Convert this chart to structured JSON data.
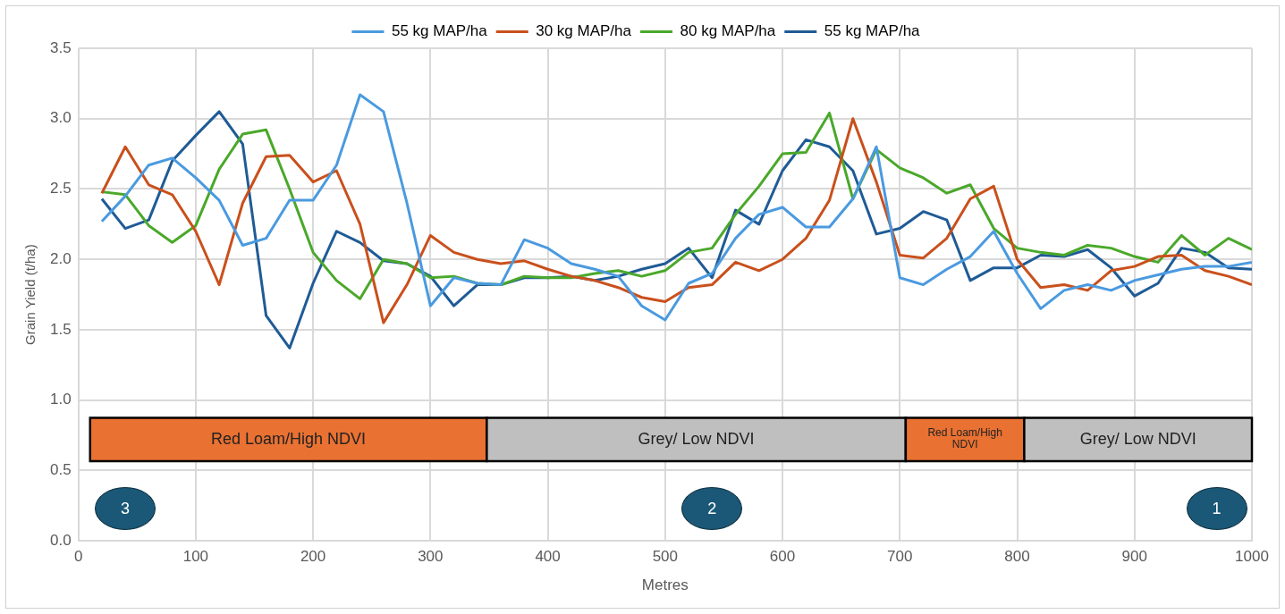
{
  "chart_data": {
    "type": "line",
    "xlabel": "Metres",
    "ylabel": "Grain Yield (t/ha)",
    "x": [
      20,
      40,
      60,
      80,
      100,
      120,
      140,
      160,
      180,
      200,
      220,
      240,
      260,
      280,
      300,
      320,
      340,
      360,
      380,
      400,
      420,
      440,
      460,
      480,
      500,
      520,
      540,
      560,
      580,
      600,
      620,
      640,
      660,
      680,
      700,
      720,
      740,
      760,
      780,
      800,
      820,
      840,
      860,
      880,
      900,
      920,
      940,
      960,
      980,
      1000
    ],
    "series": [
      {
        "name": "55 kg MAP/ha",
        "color": "#4a9ae0",
        "values": [
          2.27,
          2.45,
          2.67,
          2.72,
          2.58,
          2.42,
          2.1,
          2.15,
          2.42,
          2.42,
          2.67,
          3.17,
          3.05,
          2.4,
          1.67,
          1.87,
          1.83,
          1.82,
          2.14,
          2.08,
          1.97,
          1.93,
          1.88,
          1.67,
          1.57,
          1.83,
          1.9,
          2.15,
          2.32,
          2.37,
          2.23,
          2.23,
          2.43,
          2.8,
          1.87,
          1.82,
          1.93,
          2.02,
          2.2,
          1.9,
          1.65,
          1.78,
          1.82,
          1.78,
          1.85,
          1.89,
          1.93,
          1.95,
          1.95,
          1.98
        ]
      },
      {
        "name": "30 kg MAP/ha",
        "color": "#c9501c",
        "values": [
          2.47,
          2.8,
          2.53,
          2.46,
          2.2,
          1.82,
          2.4,
          2.73,
          2.74,
          2.55,
          2.63,
          2.25,
          1.55,
          1.82,
          2.17,
          2.05,
          2.0,
          1.97,
          1.99,
          1.93,
          1.88,
          1.85,
          1.8,
          1.73,
          1.7,
          1.8,
          1.82,
          1.98,
          1.92,
          2.0,
          2.15,
          2.42,
          3.0,
          2.55,
          2.03,
          2.01,
          2.15,
          2.43,
          2.52,
          2.0,
          1.8,
          1.82,
          1.78,
          1.92,
          1.95,
          2.02,
          2.03,
          1.92,
          1.88,
          1.82
        ]
      },
      {
        "name": "80 kg MAP/ha",
        "color": "#4aa82a",
        "values": [
          2.48,
          2.46,
          2.24,
          2.12,
          2.24,
          2.64,
          2.89,
          2.92,
          2.5,
          2.05,
          1.85,
          1.72,
          2.0,
          1.97,
          1.87,
          1.88,
          1.83,
          1.82,
          1.88,
          1.87,
          1.87,
          1.9,
          1.92,
          1.88,
          1.92,
          2.05,
          2.08,
          2.32,
          2.52,
          2.75,
          2.76,
          3.04,
          2.43,
          2.78,
          2.65,
          2.58,
          2.47,
          2.53,
          2.22,
          2.08,
          2.05,
          2.03,
          2.1,
          2.08,
          2.02,
          1.98,
          2.17,
          2.03,
          2.15,
          2.07
        ]
      },
      {
        "name": "55 kg MAP/ha",
        "color": "#1f5b96",
        "values": [
          2.43,
          2.22,
          2.28,
          2.7,
          2.88,
          3.05,
          2.82,
          1.6,
          1.37,
          1.83,
          2.2,
          2.12,
          1.99,
          1.97,
          1.88,
          1.67,
          1.82,
          1.82,
          1.87,
          1.87,
          1.88,
          1.85,
          1.88,
          1.93,
          1.97,
          2.08,
          1.87,
          2.35,
          2.25,
          2.63,
          2.85,
          2.8,
          2.63,
          2.18,
          2.22,
          2.34,
          2.28,
          1.85,
          1.94,
          1.94,
          2.03,
          2.02,
          2.07,
          1.94,
          1.74,
          1.83,
          2.08,
          2.05,
          1.94,
          1.93
        ]
      }
    ],
    "xlim": [
      0,
      1000
    ],
    "xticks": [
      0,
      100,
      200,
      300,
      400,
      500,
      600,
      700,
      800,
      900,
      1000
    ],
    "ylim": [
      0,
      3.5
    ],
    "yticks": [
      {
        "value": 0,
        "label": "0.0"
      },
      {
        "value": 0.5,
        "label": "0.5"
      },
      {
        "value": 1,
        "label": "1.0"
      },
      {
        "value": 1.5,
        "label": "1.5"
      },
      {
        "value": 2,
        "label": "2.0"
      },
      {
        "value": 2.5,
        "label": "2.5"
      },
      {
        "value": 3,
        "label": "3.0"
      },
      {
        "value": 3.5,
        "label": "3.5"
      }
    ],
    "bands": [
      {
        "axis": "x",
        "from": 10,
        "to": 348,
        "label": "Red Loam/High NDVI",
        "color": "#e97132"
      },
      {
        "axis": "x",
        "from": 348,
        "to": 705,
        "label": "Grey/ Low NDVI",
        "color": "#bfbfbf"
      },
      {
        "axis": "x",
        "from": 705,
        "to": 806,
        "label": "Red Loam/High NDVI",
        "color": "#e97132"
      },
      {
        "axis": "x",
        "from": 806,
        "to": 1000,
        "label": "Grey/ Low NDVI",
        "color": "#bfbfbf"
      }
    ],
    "annotations": [
      "3",
      "2",
      "1"
    ],
    "grid": true,
    "legend": "top",
    "marker": "none",
    "line_style": "solid"
  }
}
